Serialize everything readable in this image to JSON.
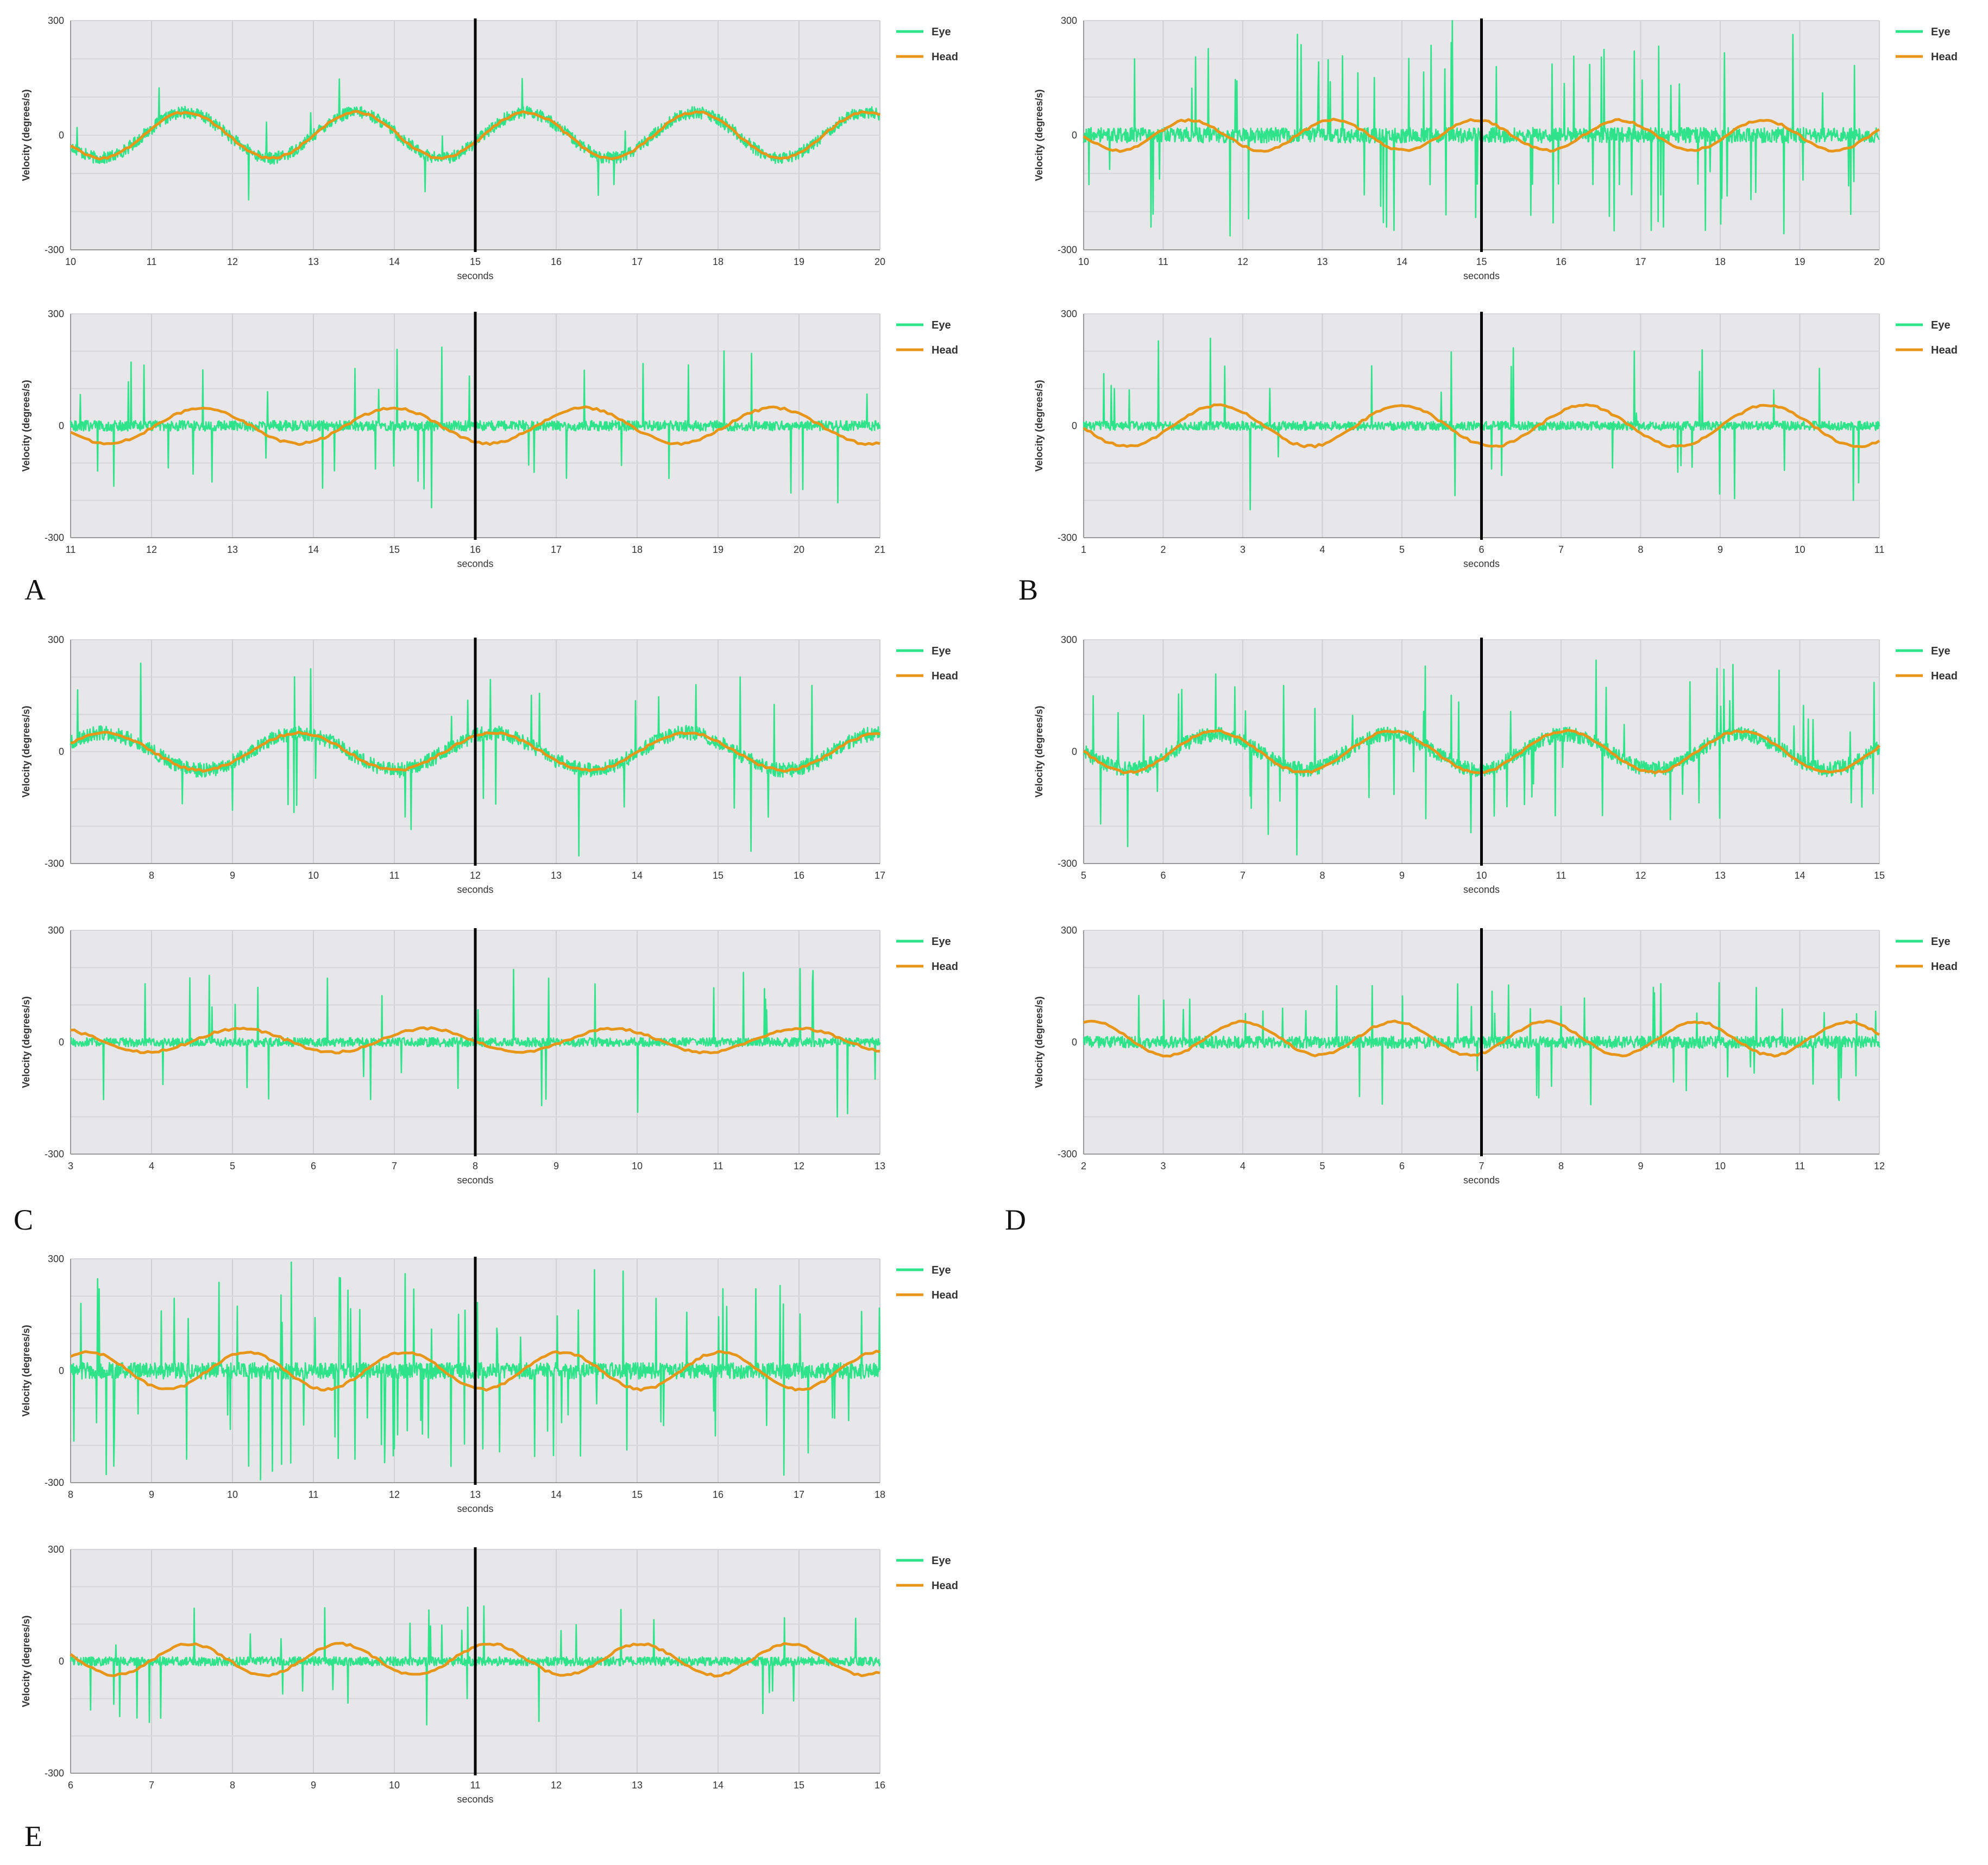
{
  "figure": {
    "panels": [
      {
        "label": "A",
        "charts": [
          0,
          1
        ]
      },
      {
        "label": "B",
        "charts": [
          2,
          3
        ]
      },
      {
        "label": "C",
        "charts": [
          4,
          5
        ]
      },
      {
        "label": "D",
        "charts": [
          6,
          7
        ]
      },
      {
        "label": "E",
        "charts": [
          8,
          9
        ]
      }
    ]
  },
  "chart_data": [
    {
      "type": "line",
      "panel": "A",
      "row": "top",
      "xlabel": "seconds",
      "ylabel": "Velocity (degrees/s)",
      "xlim": [
        10,
        20
      ],
      "ylim": [
        -300,
        300
      ],
      "xticks": [
        10,
        11,
        12,
        13,
        14,
        15,
        16,
        17,
        18,
        19,
        20
      ],
      "yticks": [
        -300,
        0,
        300
      ],
      "marker_x": 15,
      "head": {
        "amplitude": 60,
        "period": 2.1,
        "phase": -1.2,
        "offset": 0
      },
      "eye": {
        "mode": "follow",
        "gain": 1.0,
        "noise": 16,
        "spike_count": 12,
        "spike_size": 110
      },
      "series": [
        {
          "name": "Eye",
          "color": "#2fe38a"
        },
        {
          "name": "Head",
          "color": "#e8961a"
        }
      ],
      "grid": true,
      "legend": "top-right"
    },
    {
      "type": "line",
      "panel": "A",
      "row": "bottom",
      "xlabel": "seconds",
      "ylabel": "Velocity (degrees/s)",
      "xlim": [
        11,
        21
      ],
      "ylim": [
        -300,
        300
      ],
      "xticks": [
        11,
        12,
        13,
        14,
        15,
        16,
        17,
        18,
        19,
        20,
        21
      ],
      "yticks": [
        -300,
        0,
        300
      ],
      "marker_x": 16,
      "head": {
        "amplitude": 48,
        "period": 2.35,
        "phase": -0.8,
        "offset": 0
      },
      "eye": {
        "mode": "flat",
        "gain": 0.0,
        "noise": 14,
        "spike_count": 38,
        "spike_size": 190
      },
      "series": [
        {
          "name": "Eye",
          "color": "#2fe38a"
        },
        {
          "name": "Head",
          "color": "#e8961a"
        }
      ],
      "grid": true,
      "legend": "top-right"
    },
    {
      "type": "line",
      "panel": "B",
      "row": "top",
      "xlabel": "seconds",
      "ylabel": "Velocity (degrees/s)",
      "xlim": [
        10,
        20
      ],
      "ylim": [
        -300,
        300
      ],
      "xticks": [
        10,
        11,
        12,
        13,
        14,
        15,
        16,
        17,
        18,
        19,
        20
      ],
      "yticks": [
        -300,
        0,
        300
      ],
      "marker_x": 15,
      "head": {
        "amplitude": 40,
        "period": 1.8,
        "phase": -0.3,
        "offset": 0
      },
      "eye": {
        "mode": "flat",
        "gain": 0.0,
        "noise": 20,
        "spike_count": 80,
        "spike_size": 230
      },
      "series": [
        {
          "name": "Eye",
          "color": "#2fe38a"
        },
        {
          "name": "Head",
          "color": "#e8961a"
        }
      ],
      "grid": true,
      "legend": "top-right"
    },
    {
      "type": "line",
      "panel": "B",
      "row": "bottom",
      "xlabel": "seconds",
      "ylabel": "Velocity (degrees/s)",
      "xlim": [
        1,
        11
      ],
      "ylim": [
        -300,
        300
      ],
      "xticks": [
        1,
        2,
        3,
        4,
        5,
        6,
        7,
        8,
        9,
        10,
        11
      ],
      "yticks": [
        -300,
        0,
        300
      ],
      "marker_x": 6,
      "head": {
        "amplitude": 55,
        "period": 2.3,
        "phase": 0.5,
        "offset": 0
      },
      "eye": {
        "mode": "flat",
        "gain": 0.0,
        "noise": 12,
        "spike_count": 34,
        "spike_size": 200
      },
      "series": [
        {
          "name": "Eye",
          "color": "#2fe38a"
        },
        {
          "name": "Head",
          "color": "#e8961a"
        }
      ],
      "grid": true,
      "legend": "top-right"
    },
    {
      "type": "line",
      "panel": "C",
      "row": "top",
      "xlabel": "seconds",
      "ylabel": "Velocity (degrees/s)",
      "xlim": [
        7,
        17
      ],
      "ylim": [
        -300,
        300
      ],
      "xticks": [
        8,
        9,
        10,
        11,
        12,
        13,
        14,
        15,
        16,
        17
      ],
      "yticks": [
        -300,
        0,
        300
      ],
      "marker_x": 12,
      "head": {
        "amplitude": 50,
        "period": 2.4,
        "phase": 1.0,
        "offset": 0
      },
      "eye": {
        "mode": "follow",
        "gain": 1.0,
        "noise": 20,
        "spike_count": 30,
        "spike_size": 200
      },
      "series": [
        {
          "name": "Eye",
          "color": "#2fe38a"
        },
        {
          "name": "Head",
          "color": "#e8961a"
        }
      ],
      "grid": true,
      "legend": "top-right"
    },
    {
      "type": "line",
      "panel": "C",
      "row": "bottom",
      "xlabel": "seconds",
      "ylabel": "Velocity (degrees/s)",
      "xlim": [
        3,
        13
      ],
      "ylim": [
        -300,
        300
      ],
      "xticks": [
        3,
        4,
        5,
        6,
        7,
        8,
        9,
        10,
        11,
        12,
        13
      ],
      "yticks": [
        -300,
        0,
        300
      ],
      "marker_x": 8,
      "head": {
        "amplitude": 32,
        "period": 2.3,
        "phase": 0.2,
        "offset": 5
      },
      "eye": {
        "mode": "flat",
        "gain": 0.0,
        "noise": 12,
        "spike_count": 34,
        "spike_size": 180
      },
      "series": [
        {
          "name": "Eye",
          "color": "#2fe38a"
        },
        {
          "name": "Head",
          "color": "#e8961a"
        }
      ],
      "grid": true,
      "legend": "top-right"
    },
    {
      "type": "line",
      "panel": "D",
      "row": "top",
      "xlabel": "seconds",
      "ylabel": "Velocity (degrees/s)",
      "xlim": [
        5,
        15
      ],
      "ylim": [
        -300,
        300
      ],
      "xticks": [
        5,
        6,
        7,
        8,
        9,
        10,
        11,
        12,
        13,
        14,
        15
      ],
      "yticks": [
        -300,
        0,
        300
      ],
      "marker_x": 10,
      "head": {
        "amplitude": 55,
        "period": 2.2,
        "phase": 1.4,
        "offset": 0
      },
      "eye": {
        "mode": "follow",
        "gain": 0.85,
        "noise": 20,
        "spike_count": 60,
        "spike_size": 190
      },
      "series": [
        {
          "name": "Eye",
          "color": "#2fe38a"
        },
        {
          "name": "Head",
          "color": "#e8961a"
        }
      ],
      "grid": true,
      "legend": "top-right"
    },
    {
      "type": "line",
      "panel": "D",
      "row": "bottom",
      "xlabel": "seconds",
      "ylabel": "Velocity (degrees/s)",
      "xlim": [
        2,
        12
      ],
      "ylim": [
        -300,
        300
      ],
      "xticks": [
        2,
        3,
        4,
        5,
        6,
        7,
        8,
        9,
        10,
        11,
        12
      ],
      "yticks": [
        -300,
        0,
        300
      ],
      "marker_x": 7,
      "head": {
        "amplitude": 45,
        "period": 1.9,
        "phase": 0.9,
        "offset": 10
      },
      "eye": {
        "mode": "flat",
        "gain": 0.0,
        "noise": 16,
        "spike_count": 46,
        "spike_size": 150
      },
      "series": [
        {
          "name": "Eye",
          "color": "#2fe38a"
        },
        {
          "name": "Head",
          "color": "#e8961a"
        }
      ],
      "grid": true,
      "legend": "top-right"
    },
    {
      "type": "line",
      "panel": "E",
      "row": "top",
      "xlabel": "seconds",
      "ylabel": "Velocity (degrees/s)",
      "xlim": [
        8,
        18
      ],
      "ylim": [
        -300,
        300
      ],
      "xticks": [
        8,
        9,
        10,
        11,
        12,
        13,
        14,
        15,
        16,
        17,
        18
      ],
      "yticks": [
        -300,
        0,
        300
      ],
      "marker_x": 13,
      "head": {
        "amplitude": 50,
        "period": 1.95,
        "phase": 0.2,
        "offset": 0
      },
      "eye": {
        "mode": "flat",
        "gain": 0.0,
        "noise": 22,
        "spike_count": 95,
        "spike_size": 240
      },
      "series": [
        {
          "name": "Eye",
          "color": "#2fe38a"
        },
        {
          "name": "Head",
          "color": "#e8961a"
        }
      ],
      "grid": true,
      "legend": "top-right"
    },
    {
      "type": "line",
      "panel": "E",
      "row": "bottom",
      "xlabel": "seconds",
      "ylabel": "Velocity (degrees/s)",
      "xlim": [
        6,
        16
      ],
      "ylim": [
        -300,
        300
      ],
      "xticks": [
        6,
        7,
        8,
        9,
        10,
        11,
        12,
        13,
        14,
        15,
        16
      ],
      "yticks": [
        -300,
        0,
        300
      ],
      "marker_x": 11,
      "head": {
        "amplitude": 42,
        "period": 1.85,
        "phase": 1.3,
        "offset": 5
      },
      "eye": {
        "mode": "flat",
        "gain": 0.0,
        "noise": 12,
        "spike_count": 36,
        "spike_size": 140
      },
      "series": [
        {
          "name": "Eye",
          "color": "#2fe38a"
        },
        {
          "name": "Head",
          "color": "#e8961a"
        }
      ],
      "grid": true,
      "legend": "top-right"
    }
  ]
}
